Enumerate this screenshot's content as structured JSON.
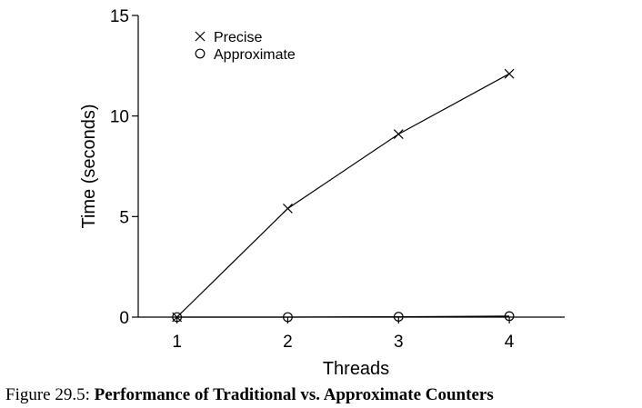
{
  "chart_data": {
    "type": "line",
    "x": [
      1,
      2,
      3,
      4
    ],
    "series": [
      {
        "name": "Precise",
        "marker": "x",
        "values": [
          0.0,
          5.4,
          9.1,
          12.1
        ]
      },
      {
        "name": "Approximate",
        "marker": "o",
        "values": [
          0.0,
          0.0,
          0.02,
          0.05
        ]
      }
    ],
    "xlabel": "Threads",
    "ylabel": "Time (seconds)",
    "xticks": [
      "1",
      "2",
      "3",
      "4"
    ],
    "yticks": [
      "0",
      "5",
      "10",
      "15"
    ],
    "xlim": [
      0.65,
      4.5
    ],
    "ylim": [
      0,
      15
    ],
    "legend_position": "top-left",
    "grid": false,
    "line_color": "#000000"
  },
  "caption": {
    "prefix": "Figure 29.5: ",
    "title": "Performance of Traditional vs. Approximate Counters"
  }
}
